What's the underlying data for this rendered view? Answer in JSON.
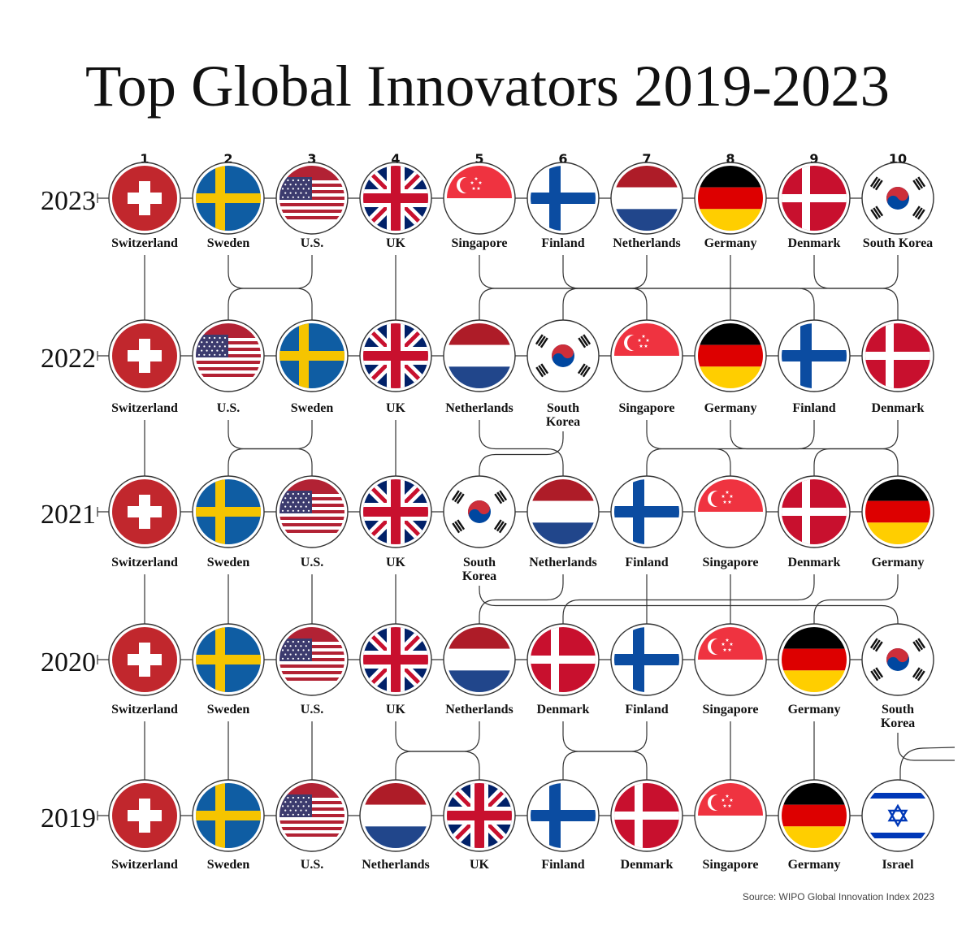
{
  "title": "Top Global Innovators 2019-2023",
  "source": "Source: WIPO Global Innovation Index 2023",
  "chart_data": {
    "type": "bump",
    "title": "Top Global Innovators 2019-2023",
    "ranks": [
      1,
      2,
      3,
      4,
      5,
      6,
      7,
      8,
      9,
      10
    ],
    "years": [
      {
        "year": "2023",
        "countries": [
          {
            "code": "CH",
            "label": "Switzerland"
          },
          {
            "code": "SE",
            "label": "Sweden"
          },
          {
            "code": "US",
            "label": "U.S."
          },
          {
            "code": "UK",
            "label": "UK"
          },
          {
            "code": "SG",
            "label": "Singapore"
          },
          {
            "code": "FI",
            "label": "Finland"
          },
          {
            "code": "NL",
            "label": "Netherlands"
          },
          {
            "code": "DE",
            "label": "Germany"
          },
          {
            "code": "DK",
            "label": "Denmark"
          },
          {
            "code": "KR",
            "label": "South Korea"
          }
        ]
      },
      {
        "year": "2022",
        "countries": [
          {
            "code": "CH",
            "label": "Switzerland"
          },
          {
            "code": "US",
            "label": "U.S."
          },
          {
            "code": "SE",
            "label": "Sweden"
          },
          {
            "code": "UK",
            "label": "UK"
          },
          {
            "code": "NL",
            "label": "Netherlands"
          },
          {
            "code": "KR",
            "label": "South\nKorea"
          },
          {
            "code": "SG",
            "label": "Singapore"
          },
          {
            "code": "DE",
            "label": "Germany"
          },
          {
            "code": "FI",
            "label": "Finland"
          },
          {
            "code": "DK",
            "label": "Denmark"
          }
        ]
      },
      {
        "year": "2021",
        "countries": [
          {
            "code": "CH",
            "label": "Switzerland"
          },
          {
            "code": "SE",
            "label": "Sweden"
          },
          {
            "code": "US",
            "label": "U.S."
          },
          {
            "code": "UK",
            "label": "UK"
          },
          {
            "code": "KR",
            "label": "South\nKorea"
          },
          {
            "code": "NL",
            "label": "Netherlands"
          },
          {
            "code": "FI",
            "label": "Finland"
          },
          {
            "code": "SG",
            "label": "Singapore"
          },
          {
            "code": "DK",
            "label": "Denmark"
          },
          {
            "code": "DE",
            "label": "Germany"
          }
        ]
      },
      {
        "year": "2020",
        "countries": [
          {
            "code": "CH",
            "label": "Switzerland"
          },
          {
            "code": "SE",
            "label": "Sweden"
          },
          {
            "code": "US",
            "label": "U.S."
          },
          {
            "code": "UK",
            "label": "UK"
          },
          {
            "code": "NL",
            "label": "Netherlands"
          },
          {
            "code": "DK",
            "label": "Denmark"
          },
          {
            "code": "FI",
            "label": "Finland"
          },
          {
            "code": "SG",
            "label": "Singapore"
          },
          {
            "code": "DE",
            "label": "Germany"
          },
          {
            "code": "KR",
            "label": "South\nKorea"
          }
        ]
      },
      {
        "year": "2019",
        "countries": [
          {
            "code": "CH",
            "label": "Switzerland"
          },
          {
            "code": "SE",
            "label": "Sweden"
          },
          {
            "code": "US",
            "label": "U.S."
          },
          {
            "code": "NL",
            "label": "Netherlands"
          },
          {
            "code": "UK",
            "label": "UK"
          },
          {
            "code": "FI",
            "label": "Finland"
          },
          {
            "code": "DK",
            "label": "Denmark"
          },
          {
            "code": "SG",
            "label": "Singapore"
          },
          {
            "code": "DE",
            "label": "Germany"
          },
          {
            "code": "IL",
            "label": "Israel"
          }
        ]
      }
    ]
  },
  "colors": {
    "text": "#111111",
    "line": "#333333",
    "source_text": "#444444",
    "swiss_red": "#C1272D",
    "sweden_blue": "#0F5DA3",
    "sweden_yellow": "#F5C400",
    "us_red": "#B22234",
    "us_blue": "#3C3B6E",
    "uk_blue": "#012169",
    "uk_red": "#C8102E",
    "singapore_red": "#EF3340",
    "finland_blue": "#0B4CA1",
    "nl_red": "#AE1C28",
    "nl_blue": "#21468B",
    "de_black": "#000000",
    "de_red": "#DD0000",
    "de_gold": "#FFCE00",
    "denmark_red": "#C8102E",
    "korea_red": "#CD2E3A",
    "korea_blue": "#0047A0",
    "israel_blue": "#0038B8"
  }
}
